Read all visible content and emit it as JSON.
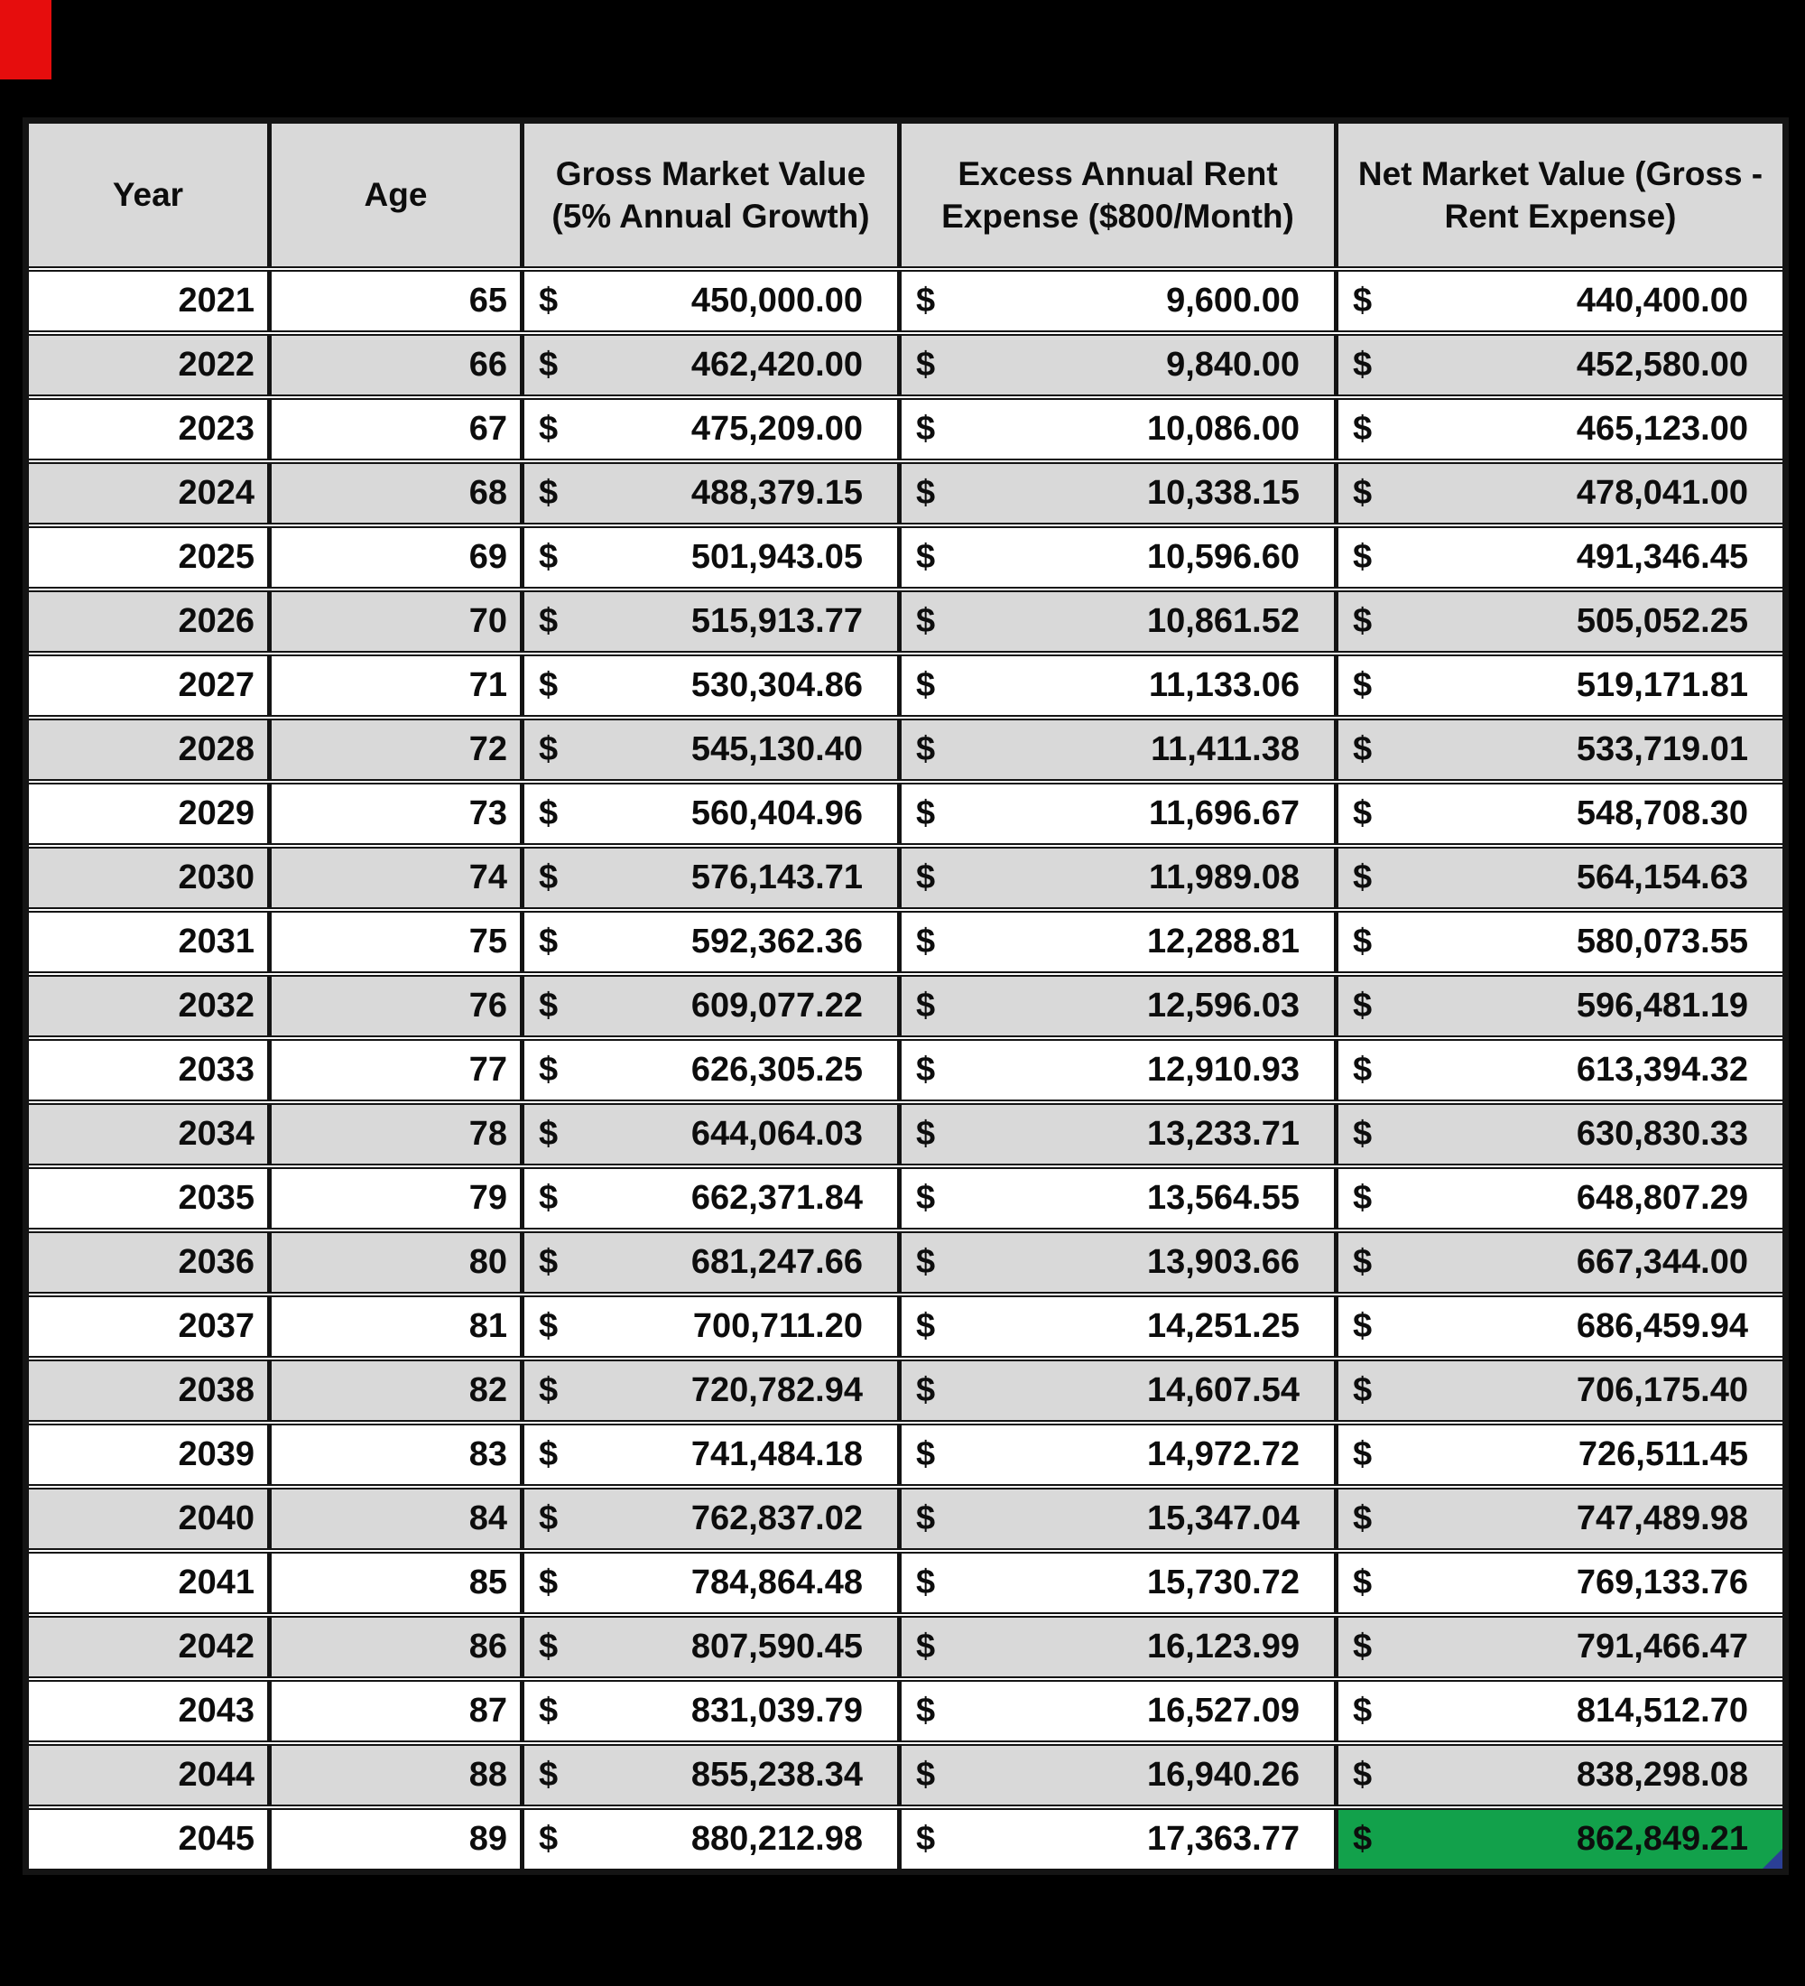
{
  "window": {
    "background": "#000000",
    "red_corner_color": "#e60d0d"
  },
  "table": {
    "currency_symbol": "$",
    "colors": {
      "shaded_row": "#d9d9d9",
      "header_bg": "#d9d9d9",
      "grid": "#141414",
      "text": "#0d0d0d",
      "highlight_green": "#12a14b",
      "handle_blue": "#2b3f96"
    },
    "columns": [
      {
        "id": "year",
        "label": "Year"
      },
      {
        "id": "age",
        "label": "Age"
      },
      {
        "id": "gross",
        "label": "Gross Market Value (5% Annual Growth)"
      },
      {
        "id": "rent",
        "label": "Excess Annual Rent Expense ($800/Month)"
      },
      {
        "id": "net",
        "label": "Net Market Value (Gross - Rent Expense)"
      }
    ],
    "rows": [
      {
        "year": "2021",
        "age": "65",
        "gross": "450,000.00",
        "rent": "9,600.00",
        "net": "440,400.00"
      },
      {
        "year": "2022",
        "age": "66",
        "gross": "462,420.00",
        "rent": "9,840.00",
        "net": "452,580.00"
      },
      {
        "year": "2023",
        "age": "67",
        "gross": "475,209.00",
        "rent": "10,086.00",
        "net": "465,123.00"
      },
      {
        "year": "2024",
        "age": "68",
        "gross": "488,379.15",
        "rent": "10,338.15",
        "net": "478,041.00"
      },
      {
        "year": "2025",
        "age": "69",
        "gross": "501,943.05",
        "rent": "10,596.60",
        "net": "491,346.45"
      },
      {
        "year": "2026",
        "age": "70",
        "gross": "515,913.77",
        "rent": "10,861.52",
        "net": "505,052.25"
      },
      {
        "year": "2027",
        "age": "71",
        "gross": "530,304.86",
        "rent": "11,133.06",
        "net": "519,171.81"
      },
      {
        "year": "2028",
        "age": "72",
        "gross": "545,130.40",
        "rent": "11,411.38",
        "net": "533,719.01"
      },
      {
        "year": "2029",
        "age": "73",
        "gross": "560,404.96",
        "rent": "11,696.67",
        "net": "548,708.30"
      },
      {
        "year": "2030",
        "age": "74",
        "gross": "576,143.71",
        "rent": "11,989.08",
        "net": "564,154.63"
      },
      {
        "year": "2031",
        "age": "75",
        "gross": "592,362.36",
        "rent": "12,288.81",
        "net": "580,073.55"
      },
      {
        "year": "2032",
        "age": "76",
        "gross": "609,077.22",
        "rent": "12,596.03",
        "net": "596,481.19"
      },
      {
        "year": "2033",
        "age": "77",
        "gross": "626,305.25",
        "rent": "12,910.93",
        "net": "613,394.32"
      },
      {
        "year": "2034",
        "age": "78",
        "gross": "644,064.03",
        "rent": "13,233.71",
        "net": "630,830.33"
      },
      {
        "year": "2035",
        "age": "79",
        "gross": "662,371.84",
        "rent": "13,564.55",
        "net": "648,807.29"
      },
      {
        "year": "2036",
        "age": "80",
        "gross": "681,247.66",
        "rent": "13,903.66",
        "net": "667,344.00"
      },
      {
        "year": "2037",
        "age": "81",
        "gross": "700,711.20",
        "rent": "14,251.25",
        "net": "686,459.94"
      },
      {
        "year": "2038",
        "age": "82",
        "gross": "720,782.94",
        "rent": "14,607.54",
        "net": "706,175.40"
      },
      {
        "year": "2039",
        "age": "83",
        "gross": "741,484.18",
        "rent": "14,972.72",
        "net": "726,511.45"
      },
      {
        "year": "2040",
        "age": "84",
        "gross": "762,837.02",
        "rent": "15,347.04",
        "net": "747,489.98"
      },
      {
        "year": "2041",
        "age": "85",
        "gross": "784,864.48",
        "rent": "15,730.72",
        "net": "769,133.76"
      },
      {
        "year": "2042",
        "age": "86",
        "gross": "807,590.45",
        "rent": "16,123.99",
        "net": "791,466.47"
      },
      {
        "year": "2043",
        "age": "87",
        "gross": "831,039.79",
        "rent": "16,527.09",
        "net": "814,512.70"
      },
      {
        "year": "2044",
        "age": "88",
        "gross": "855,238.34",
        "rent": "16,940.26",
        "net": "838,298.08"
      },
      {
        "year": "2045",
        "age": "89",
        "gross": "880,212.98",
        "rent": "17,363.77",
        "net": "862,849.21",
        "highlight_net": true
      }
    ]
  }
}
